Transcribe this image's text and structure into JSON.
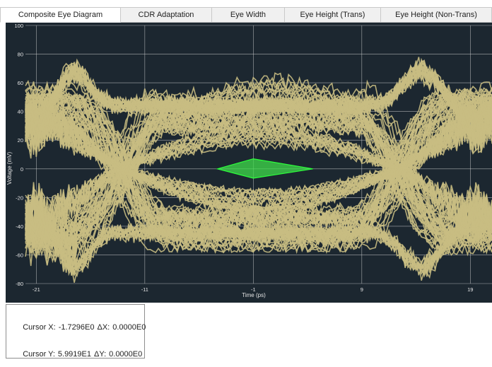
{
  "tabs": [
    {
      "label": "Composite Eye Diagram",
      "active": true
    },
    {
      "label": "CDR Adaptation",
      "active": false
    },
    {
      "label": "Eye Width",
      "active": false
    },
    {
      "label": "Eye Height (Trans)",
      "active": false
    },
    {
      "label": "Eye Height (Non-Trans)",
      "active": false
    }
  ],
  "colors": {
    "plot_background": "#1c2730",
    "trace": "#c8bd82",
    "eye_mask": "#3ddc4a",
    "grid": "#d8d8d8"
  },
  "chart_data": {
    "type": "line",
    "xlabel": "Time (ps)",
    "ylabel": "Voltage (mV)",
    "xlim": [
      -22,
      21
    ],
    "ylim": [
      -80,
      100
    ],
    "x_ticks": [
      -21,
      -11,
      -1,
      9,
      19
    ],
    "y_ticks": [
      100,
      80,
      60,
      40,
      20,
      0,
      -20,
      -40,
      -60,
      -80
    ],
    "grid": true,
    "eye_mask": [
      [
        -4.3,
        0
      ],
      [
        -1,
        7
      ],
      [
        4.5,
        0
      ],
      [
        -1,
        -6.5
      ]
    ],
    "eye_opening": {
      "upper_level": 43,
      "lower_level": -43,
      "inner_top": 16,
      "inner_bottom": -16,
      "crossing_left_x": -13.3,
      "crossing_right_x": 12.6
    },
    "overshoot": {
      "left_peak": 78,
      "right_peak": 78,
      "left_trough": -75,
      "right_trough": -77
    }
  },
  "cursor": {
    "x_label": "Cursor X:",
    "x_value": "-1.7296E0",
    "dx_label": "ΔX:",
    "dx_value": "0.0000E0",
    "y_label": "Cursor Y:",
    "y_value": "5.9919E1",
    "dy_label": "ΔY:",
    "dy_value": "0.0000E0"
  }
}
